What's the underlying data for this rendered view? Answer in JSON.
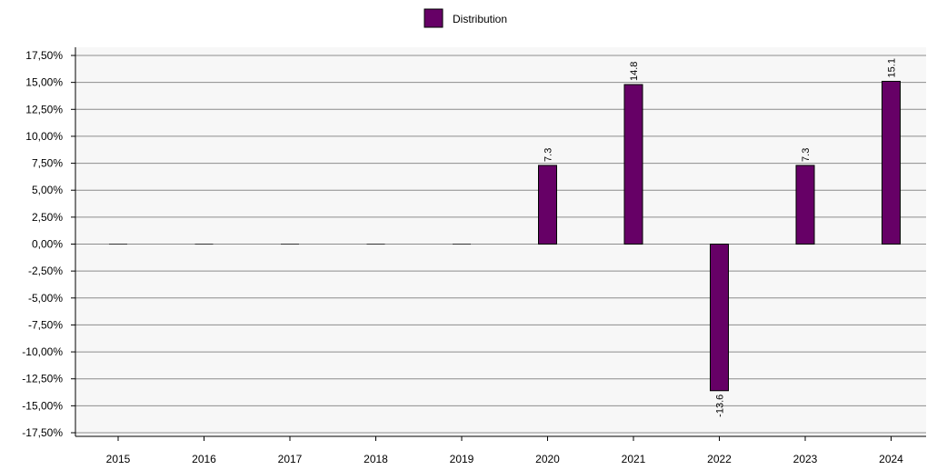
{
  "chart_data": {
    "type": "bar",
    "categories": [
      "2015",
      "2016",
      "2017",
      "2018",
      "2019",
      "2020",
      "2021",
      "2022",
      "2023",
      "2024"
    ],
    "series": [
      {
        "name": "Distribution",
        "values": [
          0,
          0,
          0,
          0,
          0,
          7.3,
          14.8,
          -13.6,
          7.3,
          15.1
        ],
        "data_labels": [
          "",
          "",
          "",
          "",
          "",
          "7.3",
          "14.8",
          "-13.6",
          "7.3",
          "15.1"
        ],
        "color": "#660066"
      }
    ],
    "y_ticks": [
      "17,50%",
      "15,00%",
      "12,50%",
      "10,00%",
      "7,50%",
      "5,00%",
      "2,50%",
      "0,00%",
      "-2,50%",
      "-5,00%",
      "-7,50%",
      "-10,00%",
      "-12,50%",
      "-15,00%",
      "-17,50%"
    ],
    "ylim": [
      -17.5,
      17.5
    ],
    "y_tick_step": 2.5,
    "grid": true,
    "legend_position": "top-center",
    "title": "",
    "xlabel": "",
    "ylabel": ""
  }
}
